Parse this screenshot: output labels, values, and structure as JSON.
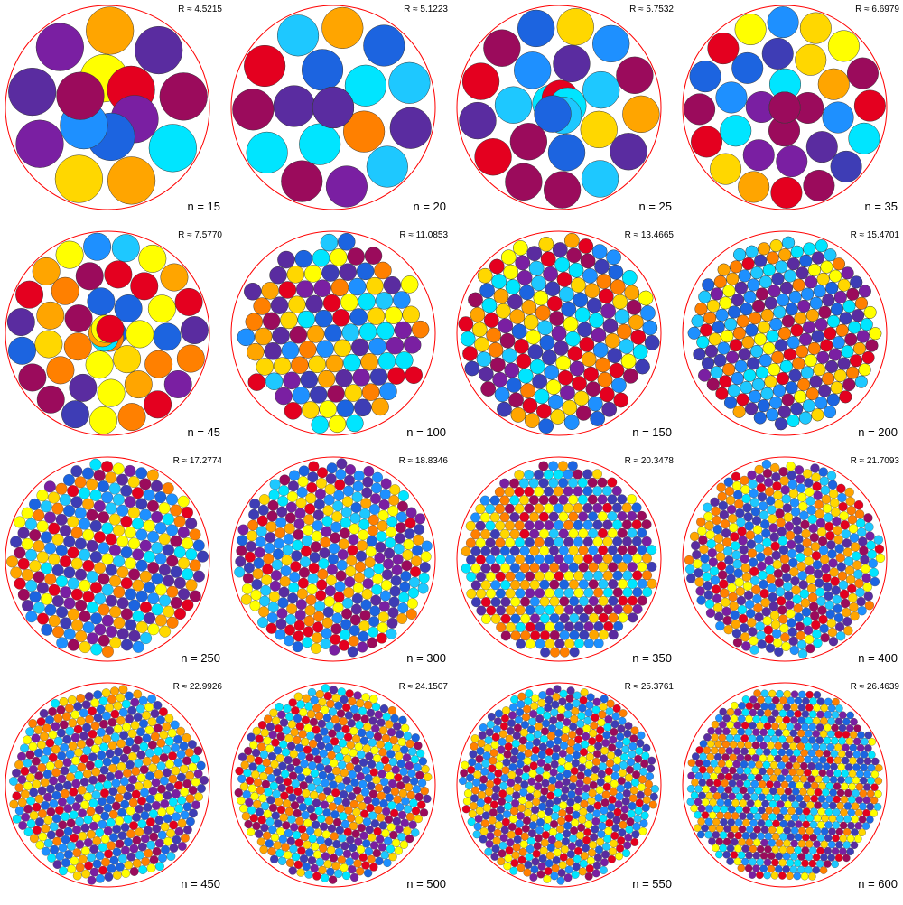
{
  "palette": [
    "#7a1fa2",
    "#9b0b5c",
    "#e4001f",
    "#ff8000",
    "#ffa500",
    "#ffd700",
    "#ffff00",
    "#00e5ff",
    "#1ec8ff",
    "#1e90ff",
    "#1c64e0",
    "#3e3db5",
    "#5a2ca0"
  ],
  "container_color": "#ff0000",
  "panels": [
    {
      "n": 15,
      "n_label": "n = 15",
      "r_label": "R ≈ 4.5215"
    },
    {
      "n": 20,
      "n_label": "n = 20",
      "r_label": "R ≈ 5.1223"
    },
    {
      "n": 25,
      "n_label": "n = 25",
      "r_label": "R ≈ 5.7532"
    },
    {
      "n": 35,
      "n_label": "n = 35",
      "r_label": "R ≈ 6.6979"
    },
    {
      "n": 45,
      "n_label": "n = 45",
      "r_label": "R ≈ 7.5770"
    },
    {
      "n": 100,
      "n_label": "n = 100",
      "r_label": "R ≈ 11.0853"
    },
    {
      "n": 150,
      "n_label": "n = 150",
      "r_label": "R ≈ 13.4665"
    },
    {
      "n": 200,
      "n_label": "n = 200",
      "r_label": "R ≈ 15.4701"
    },
    {
      "n": 250,
      "n_label": "n = 250",
      "r_label": "R ≈ 17.2774"
    },
    {
      "n": 300,
      "n_label": "n = 300",
      "r_label": "R ≈ 18.8346"
    },
    {
      "n": 350,
      "n_label": "n = 350",
      "r_label": "R ≈ 20.3478"
    },
    {
      "n": 400,
      "n_label": "n = 400",
      "r_label": "R ≈ 21.7093"
    },
    {
      "n": 450,
      "n_label": "n = 450",
      "r_label": "R ≈ 22.9926"
    },
    {
      "n": 500,
      "n_label": "n = 500",
      "r_label": "R ≈ 24.1507"
    },
    {
      "n": 550,
      "n_label": "n = 550",
      "r_label": "R ≈ 25.3761"
    },
    {
      "n": 600,
      "n_label": "n = 600",
      "r_label": "R ≈ 26.4639"
    }
  ]
}
